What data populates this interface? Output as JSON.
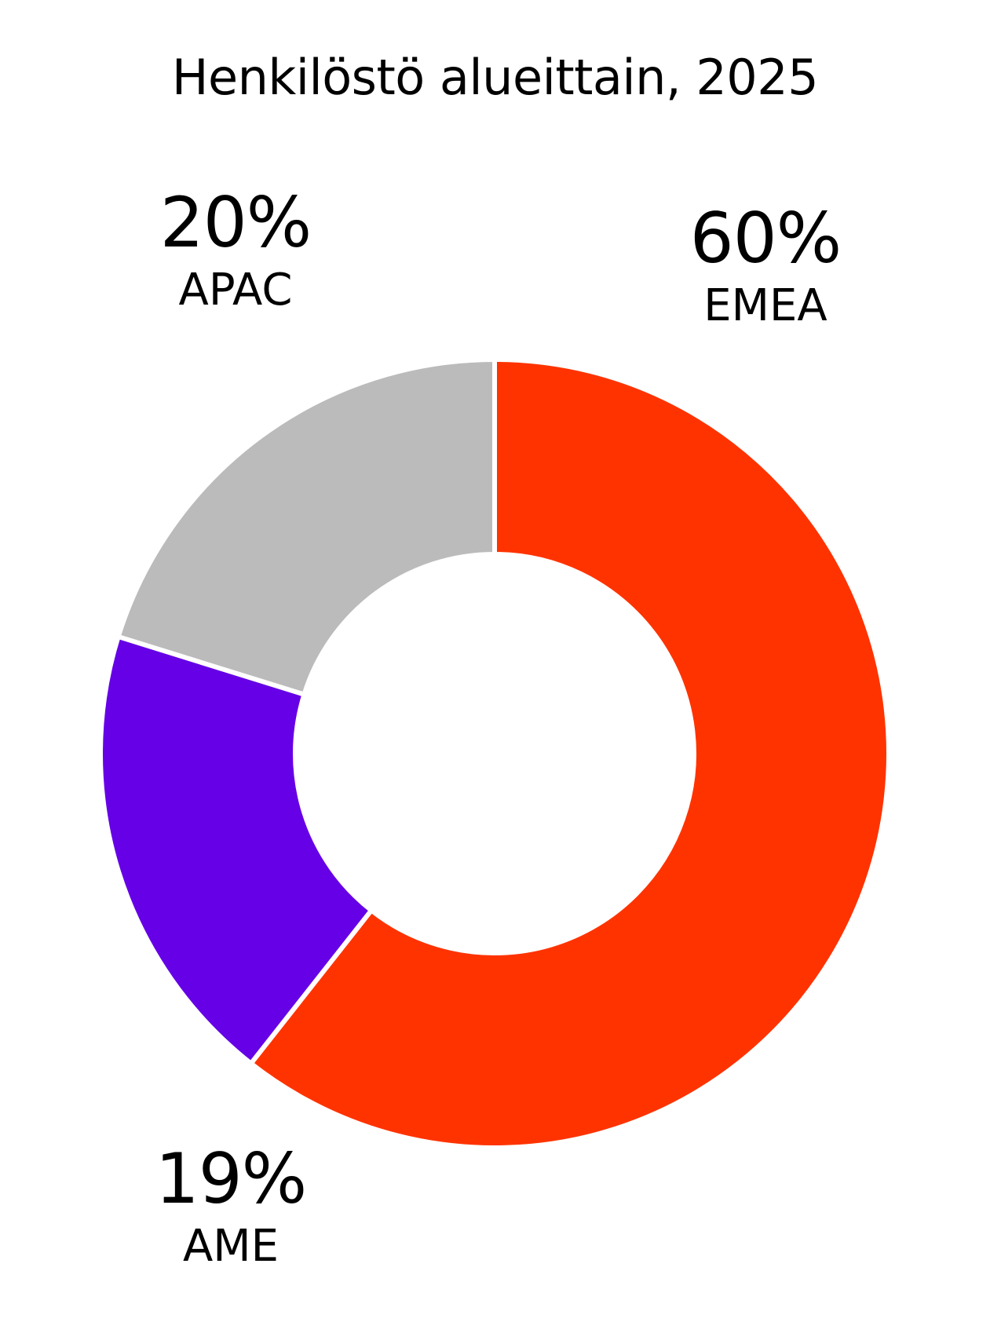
{
  "chart_data": {
    "type": "pie",
    "variant": "donut",
    "title": "Henkilöstö alueittain, 2025",
    "slices": [
      {
        "label": "EMEA",
        "value": 60,
        "value_label": "60%",
        "color": "#FF3300"
      },
      {
        "label": "AME",
        "value": 19,
        "value_label": "19%",
        "color": "#6600E6"
      },
      {
        "label": "APAC",
        "value": 20,
        "value_label": "20%",
        "color": "#BBBBBB"
      }
    ],
    "start_angle": "top",
    "direction": "clockwise",
    "legend": "none"
  }
}
